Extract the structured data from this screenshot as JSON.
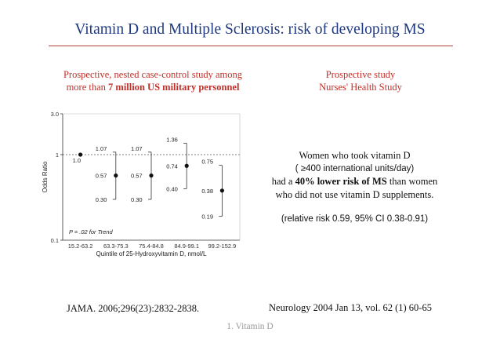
{
  "slide": {
    "title": "Vitamin D and Multiple Sclerosis: risk of developing MS",
    "left_study": {
      "line1": "Prospective, nested case-control study among",
      "line2_prefix": "more than ",
      "line2_bold": "7 million US military personnel"
    },
    "right_study": {
      "line1": "Prospective study",
      "line2": "Nurses' Health Study"
    },
    "finding": {
      "line1": "Women who took vitamin D",
      "line2": "( ≥400 international units/day)",
      "line3_prefix": "had a ",
      "line3_bold": "40% lower risk of MS",
      "line3_suffix": " than women",
      "line4": "who did not use vitamin D supplements.",
      "ci": "(relative risk 0.59, 95% CI 0.38-0.91)"
    },
    "citations": {
      "left": "JAMA. 2006;296(23):2832-2838.",
      "right": "Neurology 2004 Jan 13, vol. 62 (1) 60-65"
    },
    "footer": "1. Vitamin D"
  },
  "colors": {
    "title": "#1f3a80",
    "study_headers": "#c0302a",
    "rule": "#b04040",
    "footer": "#9a9a9a"
  },
  "chart_data": {
    "type": "scatter",
    "xlabel": "Quintile of 25-Hydroxyvitamin D, nmol/L",
    "ylabel": "Odds Ratio",
    "ylim": [
      0.1,
      3.0
    ],
    "y_scale": "log",
    "y_ticks": [
      "3.0",
      "1",
      "0.1"
    ],
    "categories": [
      "15.2-63.2",
      "63.3-75.3",
      "75.4-84.8",
      "84.9-99.1",
      "99.2-152.9"
    ],
    "points": [
      {
        "estimate": 1.0,
        "lower": null,
        "upper": null,
        "estimate_label": "1.0",
        "lower_label": "",
        "upper_label": ""
      },
      {
        "estimate": 0.57,
        "lower": 0.3,
        "upper": 1.07,
        "estimate_label": "0.57",
        "lower_label": "0.30",
        "upper_label": "1.07"
      },
      {
        "estimate": 0.57,
        "lower": 0.3,
        "upper": 1.07,
        "estimate_label": "0.57",
        "lower_label": "0.30",
        "upper_label": "1.07"
      },
      {
        "estimate": 0.74,
        "lower": 0.4,
        "upper": 1.36,
        "estimate_label": "0.74",
        "lower_label": "0.40",
        "upper_label": "1.36"
      },
      {
        "estimate": 0.38,
        "lower": 0.19,
        "upper": 0.75,
        "estimate_label": "0.38",
        "lower_label": "0.19",
        "upper_label": "0.75"
      }
    ],
    "reference_line": 1.0,
    "annotation": "P = .02 for Trend",
    "grid": false
  }
}
